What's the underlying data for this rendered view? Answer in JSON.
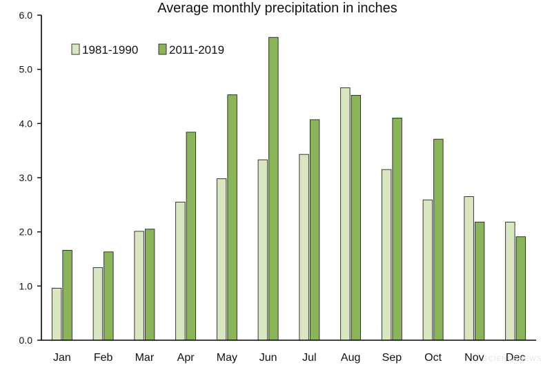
{
  "chart_data": {
    "type": "bar",
    "title": "Average monthly precipitation in inches",
    "xlabel": "",
    "ylabel": "",
    "ylim": [
      0,
      6
    ],
    "yticks": [
      "0.0",
      "1.0",
      "2.0",
      "3.0",
      "4.0",
      "5.0",
      "6.0"
    ],
    "grid": false,
    "legend_position": "top-left",
    "categories": [
      "Jan",
      "Feb",
      "Mar",
      "Apr",
      "May",
      "Jun",
      "Jul",
      "Aug",
      "Sep",
      "Oct",
      "Nov",
      "Dec"
    ],
    "series": [
      {
        "name": "1981-1990",
        "color": "#d9e6c2",
        "values": [
          0.96,
          1.34,
          2.01,
          2.55,
          2.98,
          3.33,
          3.43,
          4.66,
          3.15,
          2.59,
          2.65,
          2.18
        ]
      },
      {
        "name": "2011-2019",
        "color": "#8ab45a",
        "values": [
          1.66,
          1.63,
          2.05,
          3.84,
          4.53,
          5.59,
          4.07,
          4.52,
          4.1,
          3.71,
          2.18,
          1.91
        ]
      }
    ],
    "watermark": "SCIENCENEWS"
  }
}
